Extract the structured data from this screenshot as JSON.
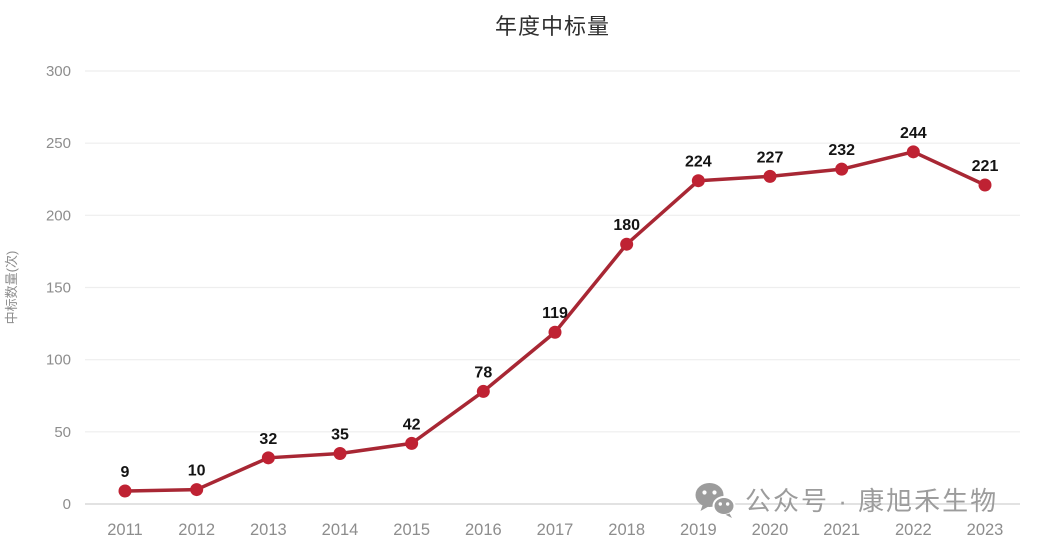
{
  "chart_data": {
    "type": "line",
    "title": "年度中标量",
    "categories": [
      "2011",
      "2012",
      "2013",
      "2014",
      "2015",
      "2016",
      "2017",
      "2018",
      "2019",
      "2020",
      "2021",
      "2022",
      "2023"
    ],
    "values": [
      9,
      10,
      32,
      35,
      42,
      78,
      119,
      180,
      224,
      227,
      232,
      244,
      221
    ],
    "xlabel": "",
    "ylabel": "中标数量(次)",
    "ylim": [
      0,
      300
    ],
    "yticks": [
      0,
      50,
      100,
      150,
      200,
      250,
      300
    ],
    "grid": "horizontal",
    "legend": "none",
    "line_color": "#a82734",
    "point_color": "#bf2233",
    "point_label_color": "#141414",
    "grid_color": "#eeeeee",
    "baseline_color": "#d8d8d8",
    "tick_color": "#8d8d8d"
  },
  "watermark": {
    "icon": "wechat-icon",
    "text": "公众号 · 康旭禾生物",
    "color": "#9c9c9c"
  }
}
